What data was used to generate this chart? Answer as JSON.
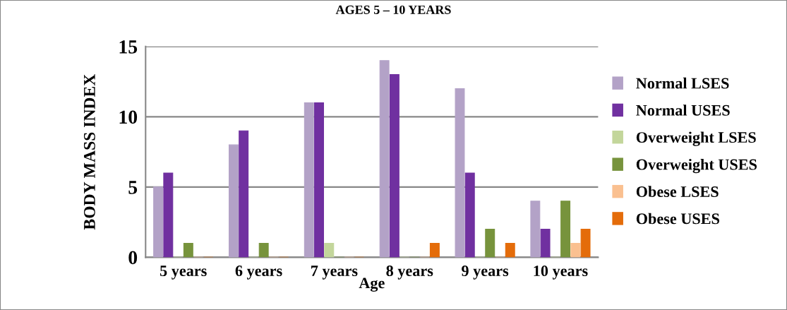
{
  "chart_data": {
    "type": "bar",
    "title": "AGES 5 – 10 YEARS",
    "xlabel": "Age",
    "ylabel": "BODY MASS INDEX",
    "categories": [
      "5 years",
      "6 years",
      "7 years",
      "8 years",
      "9 years",
      "10 years"
    ],
    "series": [
      {
        "name": "Normal LSES",
        "color": "#b3a2c7",
        "values": [
          5,
          8,
          11,
          14,
          12,
          4
        ]
      },
      {
        "name": "Normal USES",
        "color": "#7030a0",
        "values": [
          6,
          9,
          11,
          13,
          6,
          2
        ]
      },
      {
        "name": "Overweight LSES",
        "color": "#c3d69b",
        "values": [
          0,
          0,
          1,
          0,
          0,
          0
        ]
      },
      {
        "name": "Overweight USES",
        "color": "#77933c",
        "values": [
          1,
          1,
          0,
          0,
          2,
          4
        ]
      },
      {
        "name": "Obese LSES",
        "color": "#fac090",
        "values": [
          0,
          0,
          0,
          0,
          0,
          1
        ]
      },
      {
        "name": "Obese USES",
        "color": "#e46c0a",
        "values": [
          0,
          0,
          0,
          1,
          1,
          2
        ]
      }
    ],
    "ylim": [
      0,
      15
    ],
    "yticks": [
      0,
      5,
      10,
      15
    ],
    "grid": "y",
    "legend": "right"
  }
}
